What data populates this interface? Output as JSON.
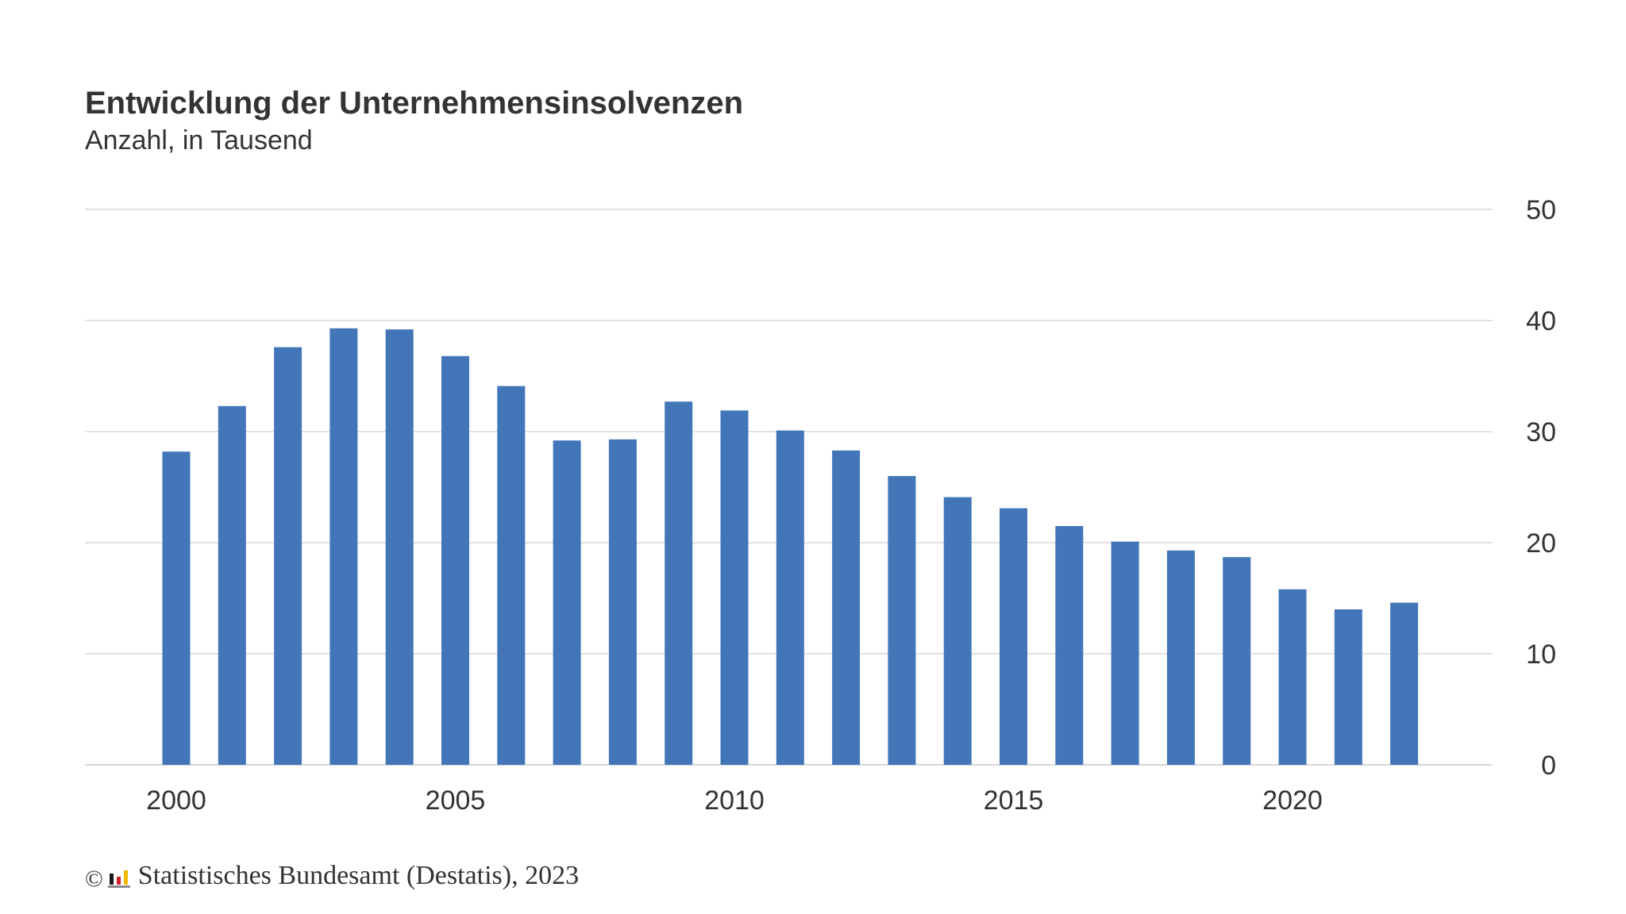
{
  "chart_data": {
    "type": "bar",
    "title": "Entwicklung der Unternehmensinsolvenzen",
    "subtitle": "Anzahl, in Tausend",
    "categories": [
      2000,
      2001,
      2002,
      2003,
      2004,
      2005,
      2006,
      2007,
      2008,
      2009,
      2010,
      2011,
      2012,
      2013,
      2014,
      2015,
      2016,
      2017,
      2018,
      2019,
      2020,
      2021,
      2022
    ],
    "values": [
      28.2,
      32.3,
      37.6,
      39.3,
      39.2,
      36.8,
      34.1,
      29.2,
      29.3,
      32.7,
      31.9,
      30.1,
      28.3,
      26.0,
      24.1,
      23.1,
      21.5,
      20.1,
      19.3,
      18.7,
      15.8,
      14.0,
      14.6
    ],
    "x_tick_labels": [
      "2000",
      "2005",
      "2010",
      "2015",
      "2020"
    ],
    "y_tick_labels": [
      "0",
      "10",
      "20",
      "30",
      "40",
      "50"
    ],
    "ylim": [
      0,
      50
    ],
    "y_axis_position": "right",
    "grid": true,
    "bar_color": "#4276b9",
    "grid_color": "#d9d9d9"
  },
  "source": {
    "copyright": "©",
    "text": "Statistisches Bundesamt (Destatis), 2023"
  }
}
